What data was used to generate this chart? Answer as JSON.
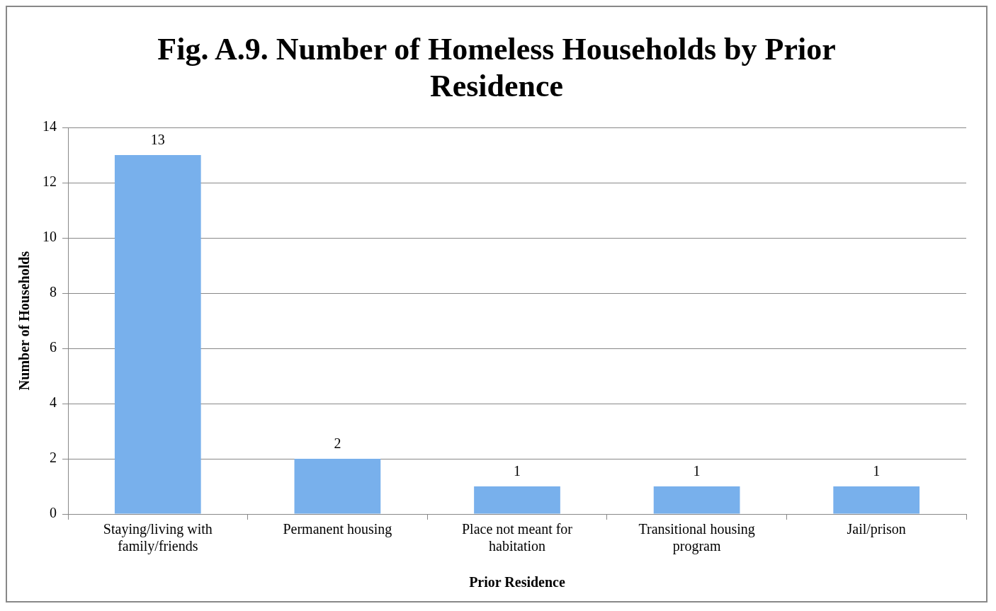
{
  "chart_data": {
    "type": "bar",
    "title": "Fig. A.9. Number of Homeless Households by Prior Residence",
    "xlabel": "Prior Residence",
    "ylabel": "Number of Households",
    "categories": [
      "Staying/living with family/friends",
      "Permanent housing",
      "Place not meant for habitation",
      "Transitional housing program",
      "Jail/prison"
    ],
    "values": [
      13,
      2,
      1,
      1,
      1
    ],
    "color": "#78b0ec",
    "ylim": [
      0,
      14
    ],
    "yticks": [
      0,
      2,
      4,
      6,
      8,
      10,
      12,
      14
    ],
    "grid": "y",
    "data_labels": true,
    "legend": false
  }
}
